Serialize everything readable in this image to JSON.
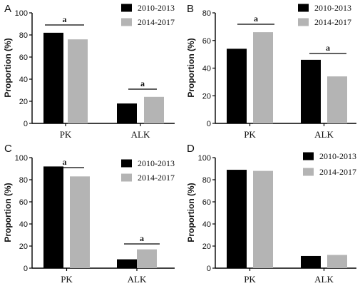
{
  "chart_data": [
    {
      "type": "bar",
      "panel": "A",
      "categories": [
        "PK",
        "ALK"
      ],
      "series": [
        {
          "name": "2010-2013",
          "values": [
            82,
            18
          ],
          "color": "#000000"
        },
        {
          "name": "2014-2017",
          "values": [
            76,
            24
          ],
          "color": "#b4b4b4"
        }
      ],
      "ylabel": "Proportion (%)",
      "ylim": [
        0,
        100
      ],
      "yticks": [
        0,
        20,
        40,
        60,
        80,
        100
      ],
      "legend_position": "top-right",
      "significance": [
        "a",
        "a"
      ]
    },
    {
      "type": "bar",
      "panel": "B",
      "categories": [
        "PK",
        "ALK"
      ],
      "series": [
        {
          "name": "2010-2013",
          "values": [
            54,
            46
          ],
          "color": "#000000"
        },
        {
          "name": "2014-2017",
          "values": [
            66,
            34
          ],
          "color": "#b4b4b4"
        }
      ],
      "ylabel": "Proportion (%)",
      "ylim": [
        0,
        80
      ],
      "yticks": [
        0,
        20,
        40,
        60,
        80
      ],
      "legend_position": "top-right",
      "significance": [
        "a",
        "a"
      ]
    },
    {
      "type": "bar",
      "panel": "C",
      "categories": [
        "PK",
        "ALK"
      ],
      "series": [
        {
          "name": "2010-2013",
          "values": [
            92,
            8
          ],
          "color": "#000000"
        },
        {
          "name": "2014-2017",
          "values": [
            83,
            17
          ],
          "color": "#b4b4b4"
        }
      ],
      "ylabel": "Proportion (%)",
      "ylim": [
        0,
        100
      ],
      "yticks": [
        0,
        20,
        40,
        60,
        80,
        100
      ],
      "legend_position": "top-right",
      "significance": [
        "a",
        "a"
      ]
    },
    {
      "type": "bar",
      "panel": "D",
      "categories": [
        "PK",
        "ALK"
      ],
      "series": [
        {
          "name": "2010-2013",
          "values": [
            89,
            11
          ],
          "color": "#000000"
        },
        {
          "name": "2014-2017",
          "values": [
            88,
            12
          ],
          "color": "#b4b4b4"
        }
      ],
      "ylabel": "Proportion (%)",
      "ylim": [
        0,
        100
      ],
      "yticks": [
        0,
        20,
        40,
        60,
        80,
        100
      ],
      "legend_position": "top-right",
      "significance": [
        "",
        ""
      ]
    }
  ]
}
